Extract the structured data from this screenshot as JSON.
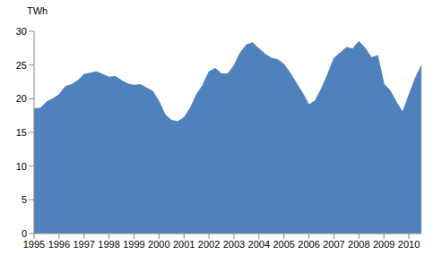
{
  "chart_data": {
    "type": "area",
    "y_label": "TWh",
    "color": "#4f81bd",
    "grid": false,
    "x": [
      1995,
      1995.25,
      1995.5,
      1995.75,
      1996,
      1996.25,
      1996.5,
      1996.75,
      1997,
      1997.25,
      1997.5,
      1997.75,
      1998,
      1998.25,
      1998.5,
      1998.75,
      1999,
      1999.25,
      1999.5,
      1999.75,
      2000,
      2000.25,
      2000.5,
      2000.75,
      2001,
      2001.25,
      2001.5,
      2001.75,
      2002,
      2002.25,
      2002.5,
      2002.75,
      2003,
      2003.25,
      2003.5,
      2003.75,
      2004,
      2004.25,
      2004.5,
      2004.75,
      2005,
      2005.25,
      2005.5,
      2005.75,
      2006,
      2006.25,
      2006.5,
      2006.75,
      2007,
      2007.25,
      2007.5,
      2007.75,
      2008,
      2008.25,
      2008.5,
      2008.75,
      2009,
      2009.25,
      2009.5,
      2009.75,
      2010,
      2010.25,
      2010.5
    ],
    "values": [
      18.5,
      18.6,
      19.5,
      20.0,
      20.6,
      21.8,
      22.1,
      22.7,
      23.6,
      23.8,
      24.0,
      23.6,
      23.2,
      23.3,
      22.7,
      22.2,
      22.0,
      22.1,
      21.6,
      21.1,
      19.6,
      17.6,
      16.8,
      16.6,
      17.2,
      18.6,
      20.6,
      22.0,
      24.0,
      24.5,
      23.7,
      23.7,
      24.9,
      26.8,
      28.0,
      28.3,
      27.4,
      26.6,
      26.0,
      25.8,
      25.1,
      23.8,
      22.3,
      20.8,
      19.1,
      19.7,
      21.5,
      23.6,
      26.0,
      26.8,
      27.6,
      27.4,
      28.5,
      27.5,
      26.1,
      26.4,
      22.2,
      21.2,
      19.5,
      18.0,
      20.5,
      23.0,
      24.9
    ],
    "xlim": [
      1995,
      2010.5
    ],
    "xticks": [
      1995,
      1996,
      1997,
      1998,
      1999,
      2000,
      2001,
      2002,
      2003,
      2004,
      2005,
      2006,
      2007,
      2008,
      2009,
      2010
    ],
    "ylim": [
      0,
      30
    ],
    "yticks": [
      0,
      5,
      10,
      15,
      20,
      25,
      30
    ]
  }
}
